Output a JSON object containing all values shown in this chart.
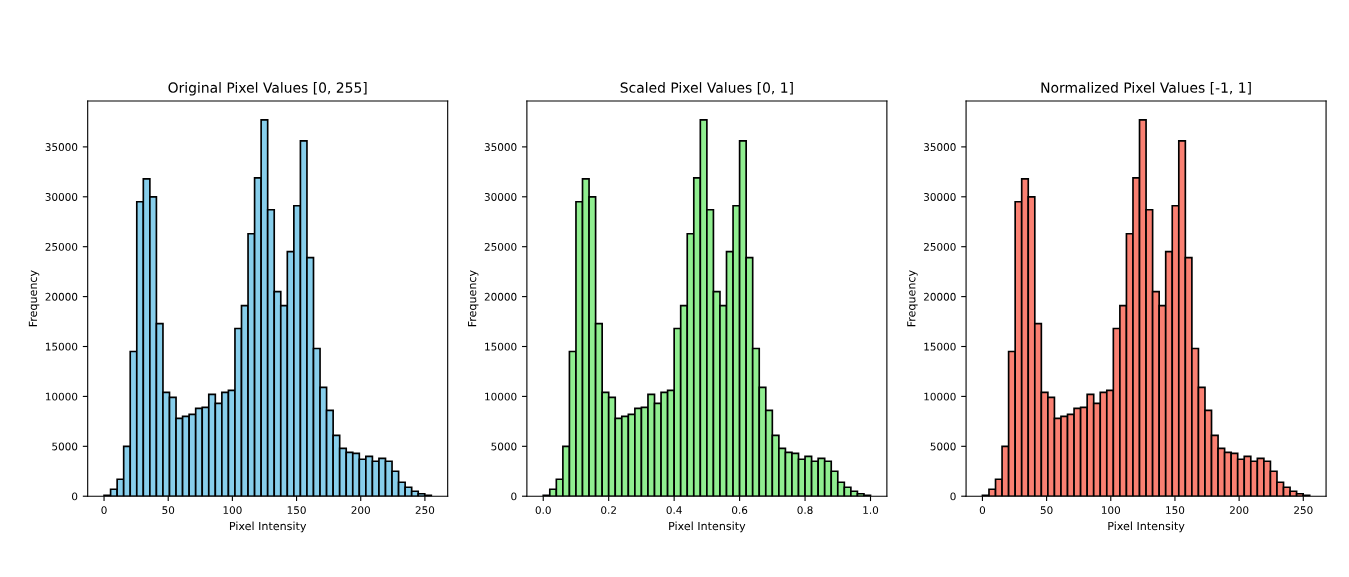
{
  "chart_data": [
    {
      "type": "histogram",
      "title": "Original Pixel Values [0, 255]",
      "xlabel": "Pixel Intensity",
      "ylabel": "Frequency",
      "color": "#87ceeb",
      "bins": [
        0,
        5.1,
        10.2,
        15.3,
        20.4,
        25.5,
        30.6,
        35.7,
        40.8,
        45.9,
        51,
        56.1,
        61.2,
        66.3,
        71.4,
        76.5,
        81.6,
        86.7,
        91.8,
        96.9,
        102,
        107.1,
        112.2,
        117.3,
        122.4,
        127.5,
        132.6,
        137.7,
        142.8,
        147.9,
        153,
        158.1,
        163.2,
        168.3,
        173.4,
        178.5,
        183.6,
        188.7,
        193.8,
        198.9,
        204,
        209.1,
        214.2,
        219.3,
        224.4,
        229.5,
        234.6,
        239.7,
        244.8,
        249.9,
        255
      ],
      "values": [
        100,
        700,
        1700,
        5000,
        14500,
        29500,
        31800,
        30000,
        17300,
        10400,
        9900,
        7800,
        8000,
        8200,
        8800,
        8900,
        10200,
        9300,
        10400,
        10600,
        16800,
        19100,
        26300,
        31900,
        37700,
        28700,
        20500,
        19100,
        24500,
        29100,
        35600,
        23900,
        14800,
        10900,
        8600,
        6100,
        4800,
        4400,
        4300,
        3700,
        4000,
        3500,
        3800,
        3500,
        2500,
        1400,
        900,
        500,
        250,
        100
      ],
      "xlim": [
        -12.75,
        267.75
      ],
      "xticks": [
        0,
        50,
        100,
        150,
        200,
        250
      ],
      "ylim": [
        0,
        39600
      ],
      "yticks": [
        0,
        5000,
        10000,
        15000,
        20000,
        25000,
        30000,
        35000
      ],
      "grid": false,
      "legend": false
    },
    {
      "type": "histogram",
      "title": "Scaled Pixel Values [0, 1]",
      "xlabel": "Pixel Intensity",
      "ylabel": "Frequency",
      "color": "#90ee90",
      "bins": [
        0,
        0.02,
        0.04,
        0.06,
        0.08,
        0.1,
        0.12,
        0.14,
        0.16,
        0.18,
        0.2,
        0.22,
        0.24,
        0.26,
        0.28,
        0.3,
        0.32,
        0.34,
        0.36,
        0.38,
        0.4,
        0.42,
        0.44,
        0.46,
        0.48,
        0.5,
        0.52,
        0.54,
        0.56,
        0.58,
        0.6,
        0.62,
        0.64,
        0.66,
        0.68,
        0.7,
        0.72,
        0.74,
        0.76,
        0.78,
        0.8,
        0.82,
        0.84,
        0.86,
        0.88,
        0.9,
        0.92,
        0.94,
        0.96,
        0.98,
        1
      ],
      "values": [
        100,
        700,
        1700,
        5000,
        14500,
        29500,
        31800,
        30000,
        17300,
        10400,
        9900,
        7800,
        8000,
        8200,
        8800,
        8900,
        10200,
        9300,
        10400,
        10600,
        16800,
        19100,
        26300,
        31900,
        37700,
        28700,
        20500,
        19100,
        24500,
        29100,
        35600,
        23900,
        14800,
        10900,
        8600,
        6100,
        4800,
        4400,
        4300,
        3700,
        4000,
        3500,
        3800,
        3500,
        2500,
        1400,
        900,
        500,
        250,
        100
      ],
      "xlim": [
        -0.05,
        1.05
      ],
      "xticks": [
        {
          "value": 0,
          "label": "0.0"
        },
        {
          "value": 0.2,
          "label": "0.2"
        },
        {
          "value": 0.4,
          "label": "0.4"
        },
        {
          "value": 0.6,
          "label": "0.6"
        },
        {
          "value": 0.8,
          "label": "0.8"
        },
        {
          "value": 1,
          "label": "1.0"
        }
      ],
      "ylim": [
        0,
        39600
      ],
      "yticks": [
        0,
        5000,
        10000,
        15000,
        20000,
        25000,
        30000,
        35000
      ],
      "grid": false,
      "legend": false
    },
    {
      "type": "histogram",
      "title": "Normalized Pixel Values [-1, 1]",
      "xlabel": "Pixel Intensity",
      "ylabel": "Frequency",
      "color": "#fa8072",
      "bins": [
        0,
        5.1,
        10.2,
        15.3,
        20.4,
        25.5,
        30.6,
        35.7,
        40.8,
        45.9,
        51,
        56.1,
        61.2,
        66.3,
        71.4,
        76.5,
        81.6,
        86.7,
        91.8,
        96.9,
        102,
        107.1,
        112.2,
        117.3,
        122.4,
        127.5,
        132.6,
        137.7,
        142.8,
        147.9,
        153,
        158.1,
        163.2,
        168.3,
        173.4,
        178.5,
        183.6,
        188.7,
        193.8,
        198.9,
        204,
        209.1,
        214.2,
        219.3,
        224.4,
        229.5,
        234.6,
        239.7,
        244.8,
        249.9,
        255
      ],
      "values": [
        100,
        700,
        1700,
        5000,
        14500,
        29500,
        31800,
        30000,
        17300,
        10400,
        9900,
        7800,
        8000,
        8200,
        8800,
        8900,
        10200,
        9300,
        10400,
        10600,
        16800,
        19100,
        26300,
        31900,
        37700,
        28700,
        20500,
        19100,
        24500,
        29100,
        35600,
        23900,
        14800,
        10900,
        8600,
        6100,
        4800,
        4400,
        4300,
        3700,
        4000,
        3500,
        3800,
        3500,
        2500,
        1400,
        900,
        500,
        250,
        100
      ],
      "xlim": [
        -12.75,
        267.75
      ],
      "xticks": [
        0,
        50,
        100,
        150,
        200,
        250
      ],
      "ylim": [
        0,
        39600
      ],
      "yticks": [
        0,
        5000,
        10000,
        15000,
        20000,
        25000,
        30000,
        35000
      ],
      "grid": false,
      "legend": false
    }
  ]
}
